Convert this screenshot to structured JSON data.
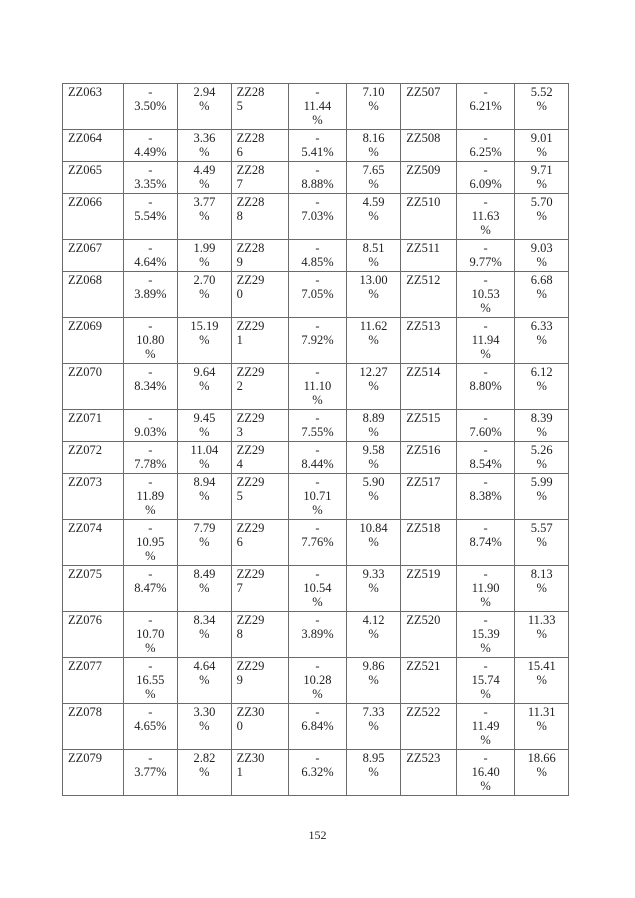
{
  "page": {
    "number": "152"
  },
  "table": {
    "rows": [
      [
        "ZZ063",
        "-\n3.50%",
        "2.94\n%",
        "ZZ28\n5",
        "-\n11.44\n%",
        "7.10\n%",
        "ZZ507",
        "-\n6.21%",
        "5.52\n%"
      ],
      [
        "ZZ064",
        "-\n4.49%",
        "3.36\n%",
        "ZZ28\n6",
        "-\n5.41%",
        "8.16\n%",
        "ZZ508",
        "-\n6.25%",
        "9.01\n%"
      ],
      [
        "ZZ065",
        "-\n3.35%",
        "4.49\n%",
        "ZZ28\n7",
        "-\n8.88%",
        "7.65\n%",
        "ZZ509",
        "-\n6.09%",
        "9.71\n%"
      ],
      [
        "ZZ066",
        "-\n5.54%",
        "3.77\n%",
        "ZZ28\n8",
        "-\n7.03%",
        "4.59\n%",
        "ZZ510",
        "-\n11.63\n%",
        "5.70\n%"
      ],
      [
        "ZZ067",
        "-\n4.64%",
        "1.99\n%",
        "ZZ28\n9",
        "-\n4.85%",
        "8.51\n%",
        "ZZ511",
        "-\n9.77%",
        "9.03\n%"
      ],
      [
        "ZZ068",
        "-\n3.89%",
        "2.70\n%",
        "ZZ29\n0",
        "-\n7.05%",
        "13.00\n%",
        "ZZ512",
        "-\n10.53\n%",
        "6.68\n%"
      ],
      [
        "ZZ069",
        "-\n10.80\n%",
        "15.19\n%",
        "ZZ29\n1",
        "-\n7.92%",
        "11.62\n%",
        "ZZ513",
        "-\n11.94\n%",
        "6.33\n%"
      ],
      [
        "ZZ070",
        "-\n8.34%",
        "9.64\n%",
        "ZZ29\n2",
        "-\n11.10\n%",
        "12.27\n%",
        "ZZ514",
        "-\n8.80%",
        "6.12\n%"
      ],
      [
        "ZZ071",
        "-\n9.03%",
        "9.45\n%",
        "ZZ29\n3",
        "-\n7.55%",
        "8.89\n%",
        "ZZ515",
        "-\n7.60%",
        "8.39\n%"
      ],
      [
        "ZZ072",
        "-\n7.78%",
        "11.04\n%",
        "ZZ29\n4",
        "-\n8.44%",
        "9.58\n%",
        "ZZ516",
        "-\n8.54%",
        "5.26\n%"
      ],
      [
        "ZZ073",
        "-\n11.89\n%",
        "8.94\n%",
        "ZZ29\n5",
        "-\n10.71\n%",
        "5.90\n%",
        "ZZ517",
        "-\n8.38%",
        "5.99\n%"
      ],
      [
        "ZZ074",
        "-\n10.95\n%",
        "7.79\n%",
        "ZZ29\n6",
        "-\n7.76%",
        "10.84\n%",
        "ZZ518",
        "-\n8.74%",
        "5.57\n%"
      ],
      [
        "ZZ075",
        "-\n8.47%",
        "8.49\n%",
        "ZZ29\n7",
        "-\n10.54\n%",
        "9.33\n%",
        "ZZ519",
        "-\n11.90\n%",
        "8.13\n%"
      ],
      [
        "ZZ076",
        "-\n10.70\n%",
        "8.34\n%",
        "ZZ29\n8",
        "-\n3.89%",
        "4.12\n%",
        "ZZ520",
        "-\n15.39\n%",
        "11.33\n%"
      ],
      [
        "ZZ077",
        "-\n16.55\n%",
        "4.64\n%",
        "ZZ29\n9",
        "-\n10.28\n%",
        "9.86\n%",
        "ZZ521",
        "-\n15.74\n%",
        "15.41\n%"
      ],
      [
        "ZZ078",
        "-\n4.65%",
        "3.30\n%",
        "ZZ30\n0",
        "-\n6.84%",
        "7.33\n%",
        "ZZ522",
        "-\n11.49\n%",
        "11.31\n%"
      ],
      [
        "ZZ079",
        "-\n3.77%",
        "2.82\n%",
        "ZZ30\n1",
        "-\n6.32%",
        "8.95\n%",
        "ZZ523",
        "-\n16.40\n%",
        "18.66\n%"
      ]
    ]
  }
}
